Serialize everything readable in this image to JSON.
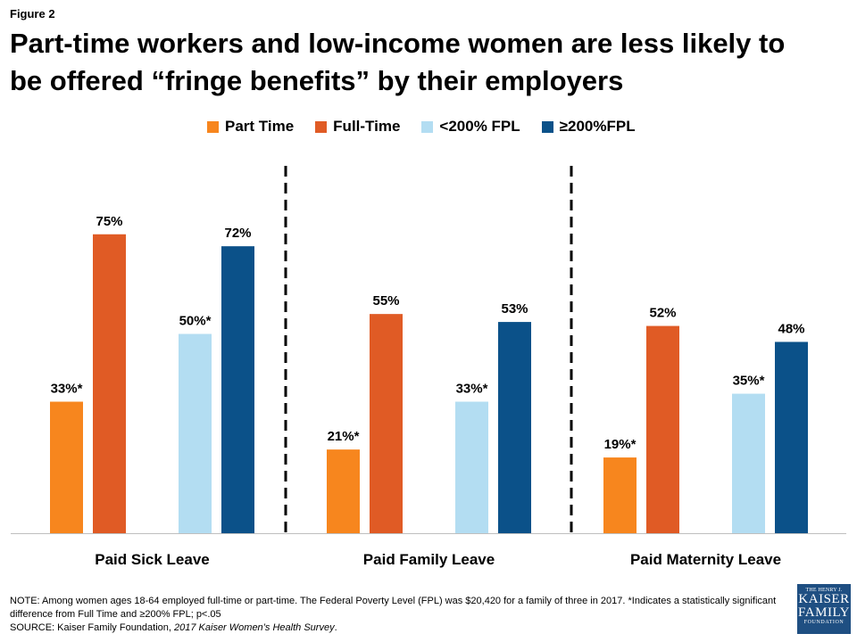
{
  "figure_label": "Figure 2",
  "title_lines": [
    "Part-time workers and low-income women are less likely to",
    "be offered “fringe benefits” by their employers"
  ],
  "notes": {
    "note": "NOTE:  Among women ages 18-64 employed full-time or part-time. The Federal Poverty Level (FPL) was $20,420 for a family of three in 2017. *Indicates a statistically significant difference from Full Time and ≥200% FPL; p<.05",
    "source_prefix": "SOURCE:  Kaiser Family Foundation, ",
    "source_report": "2017 Kaiser Women’s Health Survey",
    "source_suffix": "."
  },
  "logo": {
    "line1": "THE HENRY J.",
    "line2": "KAISER",
    "line3": "FAMILY",
    "line4": "FOUNDATION"
  },
  "chart_data": {
    "type": "bar",
    "categories": [
      "Paid Sick Leave",
      "Paid Family Leave",
      "Paid Maternity Leave"
    ],
    "series": [
      {
        "name": "Part Time",
        "color": "#f7861e",
        "values": [
          33,
          21,
          19
        ],
        "labels": [
          "33%*",
          "21%*",
          "19%*"
        ]
      },
      {
        "name": "Full-Time",
        "color": "#e05b25",
        "values": [
          75,
          55,
          52
        ],
        "labels": [
          "75%",
          "55%",
          "52%"
        ]
      },
      {
        "name": "<200% FPL",
        "color": "#b3ddf2",
        "values": [
          50,
          33,
          35
        ],
        "labels": [
          "50%*",
          "33%*",
          "35%*"
        ]
      },
      {
        "name": "≥200%FPL",
        "color": "#0b5189",
        "values": [
          72,
          53,
          48
        ],
        "labels": [
          "72%",
          "53%",
          "48%"
        ]
      }
    ],
    "ylim": [
      0,
      100
    ],
    "grid": false,
    "legend": "top-center",
    "group_separators": "dashed"
  }
}
